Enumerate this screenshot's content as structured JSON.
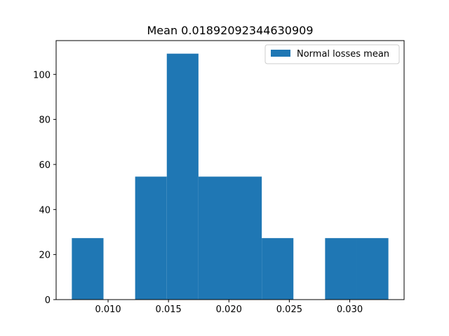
{
  "chart_data": {
    "type": "bar",
    "title": "Mean 0.01892092344630909",
    "xlabel": "",
    "ylabel": "",
    "xlim": [
      0.0057,
      0.0345
    ],
    "ylim": [
      0,
      115
    ],
    "x_ticks": [
      0.01,
      0.015,
      0.02,
      0.025,
      0.03
    ],
    "x_tick_labels": [
      "0.010",
      "0.015",
      "0.020",
      "0.025",
      "0.030"
    ],
    "y_ticks": [
      0,
      20,
      40,
      60,
      80,
      100
    ],
    "y_tick_labels": [
      "0",
      "20",
      "40",
      "60",
      "80",
      "100"
    ],
    "bin_edges": [
      0.007,
      0.00962,
      0.01224,
      0.01486,
      0.01748,
      0.0201,
      0.02272,
      0.02534,
      0.02796,
      0.03058,
      0.0332
    ],
    "series": [
      {
        "name": "Normal losses mean",
        "values": [
          27.3,
          0,
          54.6,
          109.2,
          54.6,
          54.6,
          27.3,
          0,
          27.3,
          27.3
        ]
      }
    ],
    "bar_color": "#1f77b4",
    "legend": {
      "placement": "upper-right",
      "entries": [
        "Normal losses mean"
      ]
    },
    "grid": false
  }
}
